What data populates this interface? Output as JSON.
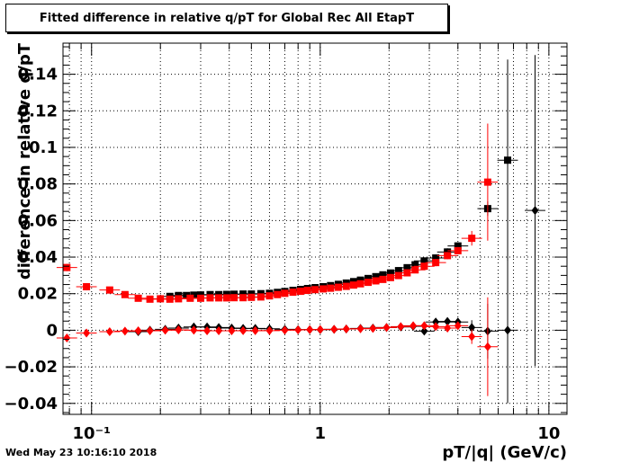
{
  "title": "Fitted difference in relative q/pT for Global Rec All EtapT",
  "footer": "Wed May 23 10:16:10 2018",
  "chart_data": {
    "type": "scatter",
    "xlabel": "pT/|q| (GeV/c)",
    "ylabel": "difference in relative q/pT",
    "xscale": "log",
    "xlim": [
      0.075,
      12
    ],
    "ylim": [
      -0.046,
      0.157
    ],
    "grid": true,
    "x_ticks": [
      {
        "value": 0.1,
        "label": "10⁻¹"
      },
      {
        "value": 1,
        "label": "1"
      },
      {
        "value": 10,
        "label": "10"
      }
    ],
    "y_ticks": [
      {
        "value": -0.04,
        "label": "−0.04"
      },
      {
        "value": -0.02,
        "label": "−0.02"
      },
      {
        "value": 0,
        "label": "0"
      },
      {
        "value": 0.02,
        "label": "0.02"
      },
      {
        "value": 0.04,
        "label": "0.04"
      },
      {
        "value": 0.06,
        "label": "0.06"
      },
      {
        "value": 0.08,
        "label": "0.08"
      },
      {
        "value": 0.1,
        "label": "0.1"
      },
      {
        "value": 0.12,
        "label": "0.12"
      },
      {
        "value": 0.14,
        "label": "0.14"
      }
    ],
    "series": [
      {
        "marker": "square",
        "color": "#000000",
        "points": [
          [
            0.22,
            0.0185,
            0.001
          ],
          [
            0.24,
            0.019,
            0.001
          ],
          [
            0.26,
            0.019,
            0.001
          ],
          [
            0.28,
            0.0192,
            0.001
          ],
          [
            0.3,
            0.0193,
            0.001
          ],
          [
            0.33,
            0.0195,
            0.001
          ],
          [
            0.36,
            0.0195,
            0.001
          ],
          [
            0.39,
            0.0196,
            0.001
          ],
          [
            0.42,
            0.0197,
            0.001
          ],
          [
            0.46,
            0.0198,
            0.001
          ],
          [
            0.5,
            0.0198,
            0.001
          ],
          [
            0.55,
            0.02,
            0.001
          ],
          [
            0.6,
            0.0202,
            0.001
          ],
          [
            0.65,
            0.0207,
            0.001
          ],
          [
            0.7,
            0.0212,
            0.001
          ],
          [
            0.76,
            0.0218,
            0.001
          ],
          [
            0.82,
            0.0223,
            0.001
          ],
          [
            0.88,
            0.0228,
            0.001
          ],
          [
            0.95,
            0.0233,
            0.001
          ],
          [
            1.03,
            0.0238,
            0.001
          ],
          [
            1.11,
            0.0244,
            0.001
          ],
          [
            1.2,
            0.0251,
            0.001
          ],
          [
            1.3,
            0.0258,
            0.001
          ],
          [
            1.4,
            0.0266,
            0.001
          ],
          [
            1.5,
            0.0274,
            0.001
          ],
          [
            1.62,
            0.0283,
            0.001
          ],
          [
            1.75,
            0.0293,
            0.001
          ],
          [
            1.88,
            0.0303,
            0.001
          ],
          [
            2.03,
            0.0313,
            0.001
          ],
          [
            2.2,
            0.0326,
            0.001
          ],
          [
            2.4,
            0.0342,
            0.001
          ],
          [
            2.6,
            0.0358,
            0.001
          ],
          [
            2.85,
            0.0379,
            0.0015
          ],
          [
            3.2,
            0.0395,
            0.002
          ],
          [
            3.6,
            0.0428,
            0.002
          ],
          [
            4.0,
            0.0461,
            0.002
          ],
          [
            5.4,
            0.0665,
            0.004
          ],
          [
            6.6,
            0.093,
            0.055
          ]
        ]
      },
      {
        "marker": "square",
        "color": "#ff0000",
        "points": [
          [
            0.078,
            0.0343,
            0.002
          ],
          [
            0.095,
            0.0238,
            0.002
          ],
          [
            0.12,
            0.022,
            0.001
          ],
          [
            0.14,
            0.0195,
            0.001
          ],
          [
            0.16,
            0.0175,
            0.001
          ],
          [
            0.18,
            0.017,
            0.001
          ],
          [
            0.2,
            0.0172,
            0.001
          ],
          [
            0.22,
            0.017,
            0.001
          ],
          [
            0.24,
            0.0172,
            0.001
          ],
          [
            0.27,
            0.0175,
            0.001
          ],
          [
            0.3,
            0.0175,
            0.001
          ],
          [
            0.33,
            0.0177,
            0.001
          ],
          [
            0.36,
            0.0177,
            0.001
          ],
          [
            0.39,
            0.0177,
            0.001
          ],
          [
            0.42,
            0.0178,
            0.001
          ],
          [
            0.46,
            0.0178,
            0.001
          ],
          [
            0.5,
            0.018,
            0.001
          ],
          [
            0.55,
            0.0182,
            0.001
          ],
          [
            0.6,
            0.0188,
            0.001
          ],
          [
            0.65,
            0.0195,
            0.001
          ],
          [
            0.7,
            0.0202,
            0.001
          ],
          [
            0.76,
            0.0208,
            0.001
          ],
          [
            0.82,
            0.0213,
            0.001
          ],
          [
            0.88,
            0.0218,
            0.001
          ],
          [
            0.95,
            0.0222,
            0.001
          ],
          [
            1.03,
            0.0226,
            0.001
          ],
          [
            1.11,
            0.023,
            0.001
          ],
          [
            1.2,
            0.0235,
            0.001
          ],
          [
            1.3,
            0.024,
            0.001
          ],
          [
            1.4,
            0.0247,
            0.001
          ],
          [
            1.5,
            0.0254,
            0.001
          ],
          [
            1.62,
            0.0262,
            0.001
          ],
          [
            1.75,
            0.027,
            0.001
          ],
          [
            1.88,
            0.0278,
            0.001
          ],
          [
            2.03,
            0.0288,
            0.001
          ],
          [
            2.2,
            0.0299,
            0.001
          ],
          [
            2.4,
            0.0314,
            0.001
          ],
          [
            2.6,
            0.033,
            0.0015
          ],
          [
            2.85,
            0.035,
            0.0015
          ],
          [
            3.2,
            0.037,
            0.002
          ],
          [
            3.6,
            0.0408,
            0.002
          ],
          [
            4.0,
            0.0435,
            0.002
          ],
          [
            4.6,
            0.0503,
            0.004
          ],
          [
            5.4,
            0.081,
            0.032
          ]
        ]
      },
      {
        "marker": "diamond",
        "color": "#000000",
        "points": [
          [
            0.16,
            -0.0008,
            0.0008
          ],
          [
            0.18,
            0.0,
            0.0008
          ],
          [
            0.21,
            0.0005,
            0.0008
          ],
          [
            0.24,
            0.0012,
            0.0008
          ],
          [
            0.28,
            0.0018,
            0.0008
          ],
          [
            0.32,
            0.0018,
            0.0008
          ],
          [
            0.36,
            0.0015,
            0.0008
          ],
          [
            0.41,
            0.0012,
            0.0008
          ],
          [
            0.46,
            0.001,
            0.0008
          ],
          [
            0.52,
            0.001,
            0.0008
          ],
          [
            0.6,
            0.0008,
            0.0008
          ],
          [
            0.7,
            0.0005,
            0.0008
          ],
          [
            0.8,
            0.0003,
            0.0008
          ],
          [
            0.9,
            0.0003,
            0.0008
          ],
          [
            1.0,
            0.0003,
            0.0008
          ],
          [
            1.15,
            0.0005,
            0.0008
          ],
          [
            1.3,
            0.0007,
            0.0008
          ],
          [
            1.5,
            0.001,
            0.0008
          ],
          [
            1.7,
            0.0012,
            0.0008
          ],
          [
            1.95,
            0.0015,
            0.001
          ],
          [
            2.25,
            0.0018,
            0.001
          ],
          [
            2.55,
            0.0022,
            0.001
          ],
          [
            2.85,
            -0.0005,
            0.0015
          ],
          [
            3.2,
            0.0045,
            0.002
          ],
          [
            3.6,
            0.0048,
            0.002
          ],
          [
            4.0,
            0.0045,
            0.002
          ],
          [
            4.6,
            0.0015,
            0.004
          ],
          [
            5.4,
            -0.0005,
            0.015
          ],
          [
            6.6,
            0.0,
            0.04
          ],
          [
            8.7,
            0.0655,
            0.085
          ]
        ]
      },
      {
        "marker": "diamond",
        "color": "#ff0000",
        "points": [
          [
            0.078,
            -0.0042,
            0.001
          ],
          [
            0.095,
            -0.0015,
            0.001
          ],
          [
            0.12,
            -0.0008,
            0.0008
          ],
          [
            0.14,
            -0.0005,
            0.0008
          ],
          [
            0.16,
            -0.0003,
            0.0008
          ],
          [
            0.18,
            -0.0003,
            0.0008
          ],
          [
            0.21,
            0.0,
            0.0008
          ],
          [
            0.24,
            0.0002,
            0.0008
          ],
          [
            0.28,
            0.0,
            0.0008
          ],
          [
            0.32,
            -0.0003,
            0.0008
          ],
          [
            0.36,
            -0.0003,
            0.0008
          ],
          [
            0.41,
            -0.0003,
            0.0008
          ],
          [
            0.46,
            -0.0002,
            0.0008
          ],
          [
            0.52,
            -0.0002,
            0.0008
          ],
          [
            0.6,
            -0.0002,
            0.0008
          ],
          [
            0.7,
            0.0,
            0.0008
          ],
          [
            0.8,
            0.0002,
            0.0008
          ],
          [
            0.9,
            0.0003,
            0.0008
          ],
          [
            1.0,
            0.0004,
            0.0008
          ],
          [
            1.15,
            0.0005,
            0.0008
          ],
          [
            1.3,
            0.0007,
            0.0008
          ],
          [
            1.5,
            0.0008,
            0.0008
          ],
          [
            1.7,
            0.001,
            0.0008
          ],
          [
            1.95,
            0.0015,
            0.001
          ],
          [
            2.25,
            0.002,
            0.001
          ],
          [
            2.55,
            0.0025,
            0.001
          ],
          [
            2.85,
            0.0025,
            0.0015
          ],
          [
            3.2,
            0.002,
            0.002
          ],
          [
            3.6,
            0.0012,
            0.002
          ],
          [
            4.0,
            0.0025,
            0.002
          ],
          [
            4.6,
            -0.0035,
            0.004
          ],
          [
            5.4,
            -0.009,
            0.027
          ]
        ]
      }
    ]
  }
}
